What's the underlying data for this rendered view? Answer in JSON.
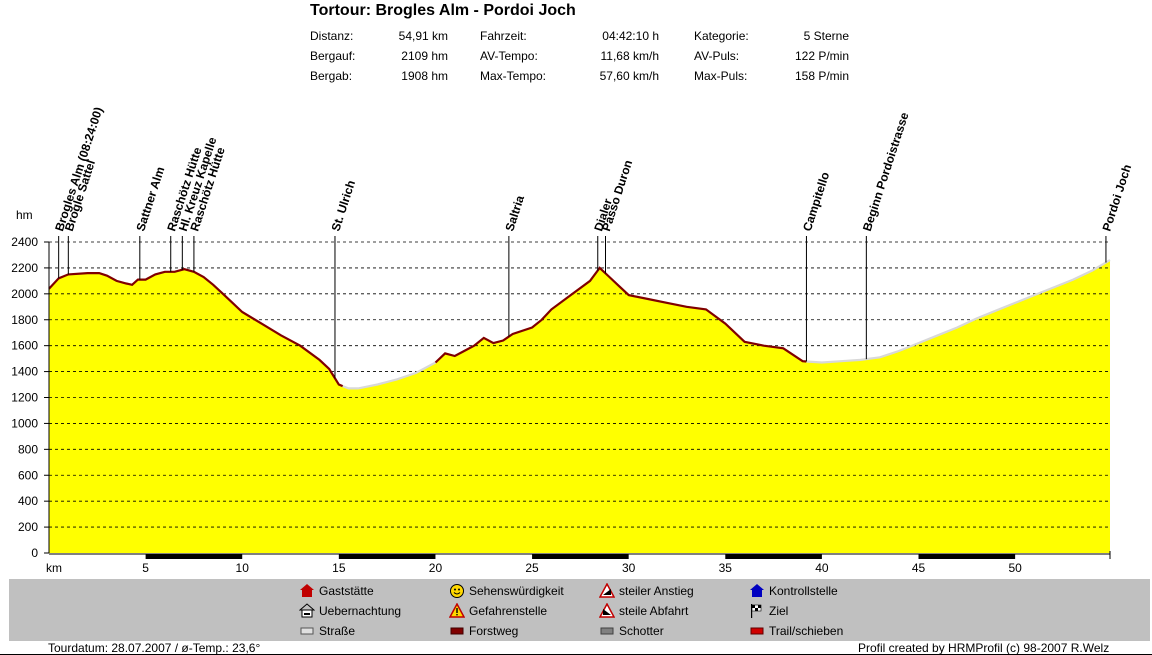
{
  "header": {
    "title": "Tortour: Brogles Alm - Pordoi Joch",
    "stats": [
      {
        "label": "Distanz:",
        "value": "54,91 km"
      },
      {
        "label": "Bergauf:",
        "value": "2109 hm"
      },
      {
        "label": "Bergab:",
        "value": "1908 hm"
      },
      {
        "label": "Fahrzeit:",
        "value": "04:42:10 h"
      },
      {
        "label": "AV-Tempo:",
        "value": "11,68 km/h"
      },
      {
        "label": "Max-Tempo:",
        "value": "57,60 km/h"
      },
      {
        "label": "Kategorie:",
        "value": "5 Sterne"
      },
      {
        "label": "AV-Puls:",
        "value": "122 P/min"
      },
      {
        "label": "Max-Puls:",
        "value": "158 P/min"
      }
    ]
  },
  "chart_data": {
    "type": "area",
    "ylabel": "hm",
    "xlabel": "km",
    "xlim": [
      0,
      54.91
    ],
    "ylim": [
      0,
      2400
    ],
    "yticks": [
      "0",
      "200",
      "400",
      "600",
      "800",
      "1000",
      "1200",
      "1400",
      "1600",
      "1800",
      "2000",
      "2200",
      "2400"
    ],
    "xticks": [
      {
        "x": 5,
        "label": "5"
      },
      {
        "x": 10,
        "label": "10"
      },
      {
        "x": 15,
        "label": "15"
      },
      {
        "x": 20,
        "label": "20"
      },
      {
        "x": 25,
        "label": "25"
      },
      {
        "x": 30,
        "label": "30"
      },
      {
        "x": 35,
        "label": "35"
      },
      {
        "x": 40,
        "label": "40"
      },
      {
        "x": 45,
        "label": "45"
      },
      {
        "x": 50,
        "label": "50"
      }
    ],
    "grid": true,
    "fill_color": "#ffff00",
    "profile": {
      "x": [
        0,
        0.5,
        1,
        2,
        2.6,
        3,
        3.5,
        4,
        4.3,
        4.6,
        5,
        5.5,
        6,
        6.5,
        7,
        7.5,
        8,
        8.5,
        9,
        9.5,
        10,
        11,
        12,
        13,
        14,
        14.5,
        15,
        15.5,
        16,
        17,
        18,
        19,
        20,
        20.5,
        21,
        21.5,
        22,
        22.5,
        23,
        23.5,
        24,
        25,
        25.5,
        26,
        27,
        28,
        28.5,
        29,
        29.5,
        30,
        31,
        32,
        33,
        34,
        35,
        36,
        37,
        38,
        39,
        40,
        41,
        42,
        43,
        44,
        45,
        46,
        47,
        48,
        49,
        50,
        51,
        52,
        53,
        54,
        54.91
      ],
      "y": [
        2040,
        2120,
        2150,
        2160,
        2160,
        2140,
        2100,
        2080,
        2070,
        2110,
        2110,
        2150,
        2170,
        2170,
        2190,
        2170,
        2130,
        2070,
        2000,
        1930,
        1860,
        1770,
        1680,
        1600,
        1490,
        1420,
        1300,
        1270,
        1270,
        1300,
        1340,
        1390,
        1470,
        1540,
        1520,
        1560,
        1600,
        1660,
        1620,
        1640,
        1690,
        1740,
        1800,
        1880,
        1990,
        2100,
        2200,
        2130,
        2060,
        1990,
        1960,
        1930,
        1900,
        1880,
        1770,
        1630,
        1600,
        1580,
        1480,
        1470,
        1480,
        1490,
        1510,
        1560,
        1620,
        1680,
        1740,
        1810,
        1870,
        1930,
        1990,
        2050,
        2110,
        2180,
        2260
      ],
      "segments": [
        {
          "from_km": 0,
          "to_km": 15.2,
          "type": "Forstweg",
          "color": "#800000"
        },
        {
          "from_km": 15.2,
          "to_km": 20.0,
          "type": "Straße",
          "color": "#d8d8d8"
        },
        {
          "from_km": 20.0,
          "to_km": 39.2,
          "type": "Forstweg",
          "color": "#800000"
        },
        {
          "from_km": 39.2,
          "to_km": 54.91,
          "type": "Straße",
          "color": "#d8d8d8"
        }
      ]
    },
    "waypoints": [
      {
        "km": 0.5,
        "label": "Brogles Alm (08:24:00)"
      },
      {
        "km": 1.0,
        "label": "Brogle Sattel"
      },
      {
        "km": 4.7,
        "label": "Sattner Alm"
      },
      {
        "km": 6.3,
        "label": "Raschötz Hütte"
      },
      {
        "km": 6.9,
        "label": "Hl. Kreuz Kapelle"
      },
      {
        "km": 7.5,
        "label": "Raschötz Hütte"
      },
      {
        "km": 14.8,
        "label": "St. Ulrich"
      },
      {
        "km": 23.8,
        "label": "Saltria"
      },
      {
        "km": 28.4,
        "label": "Dialer"
      },
      {
        "km": 28.8,
        "label": "Passo Duron"
      },
      {
        "km": 39.2,
        "label": "Campitello"
      },
      {
        "km": 42.3,
        "label": "Beginn Pordoistrasse"
      },
      {
        "km": 54.7,
        "label": "Pordoi Joch"
      }
    ],
    "xbar_segments": [
      [
        5,
        10
      ],
      [
        15,
        20
      ],
      [
        25,
        30
      ],
      [
        35,
        40
      ],
      [
        45,
        50
      ]
    ]
  },
  "legend": {
    "items": [
      {
        "label": "Gaststätte",
        "icon": "house-red-icon"
      },
      {
        "label": "Uebernachtung",
        "icon": "bed-house-icon"
      },
      {
        "label": "Straße",
        "icon": "road-swatch-icon",
        "color": "#e0e0e0"
      },
      {
        "label": "Sehenswürdigkeit",
        "icon": "smiley-icon"
      },
      {
        "label": "Gefahrenstelle",
        "icon": "warning-triangle-icon"
      },
      {
        "label": "Forstweg",
        "icon": "forestry-swatch-icon",
        "color": "#800000"
      },
      {
        "label": "steiler Anstieg",
        "icon": "steep-ascent-icon"
      },
      {
        "label": "steile Abfahrt",
        "icon": "steep-descent-icon"
      },
      {
        "label": "Schotter",
        "icon": "gravel-swatch-icon",
        "color": "#808080"
      },
      {
        "label": "Kontrollstelle",
        "icon": "checkpoint-house-icon"
      },
      {
        "label": "Ziel",
        "icon": "finish-flag-icon"
      },
      {
        "label": "Trail/schieben",
        "icon": "trail-swatch-icon",
        "color": "#d00000"
      }
    ]
  },
  "footer": {
    "left": "Tourdatum: 28.07.2007  /  ø-Temp.: 23,6°",
    "right": "Profil created by HRMProfil (c) 98-2007 R.Welz"
  }
}
